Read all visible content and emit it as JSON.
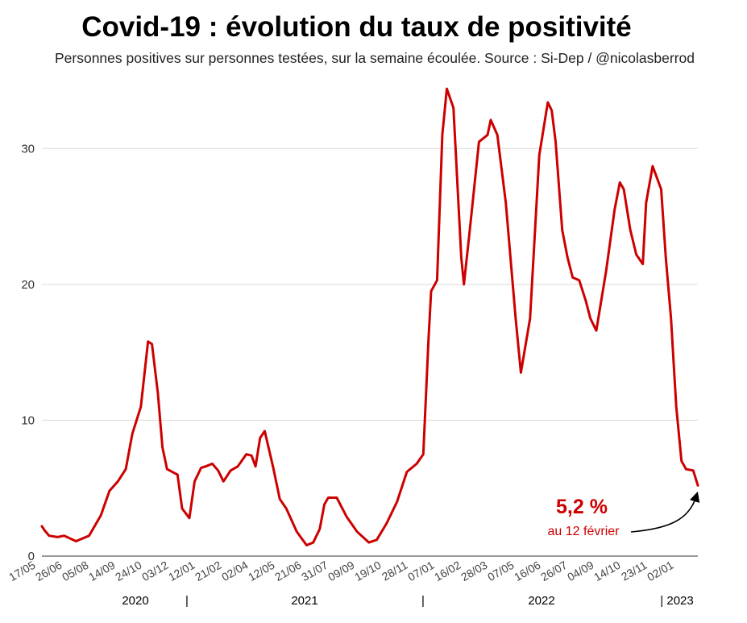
{
  "title": "Covid-19 : évolution du taux de positivité",
  "subtitle": "Personnes positives sur personnes testées, sur la semaine écoulée. Source : Si-Dep / @nicolasberrod",
  "chart_data": {
    "type": "line",
    "ylim": [
      0,
      35
    ],
    "yticks": [
      0,
      10,
      20,
      30
    ],
    "grid": true,
    "line_color": "#cc0000",
    "x_tick_labels": [
      "17/05",
      "26/06",
      "05/08",
      "14/09",
      "24/10",
      "03/12",
      "12/01",
      "21/02",
      "02/04",
      "12/05",
      "21/06",
      "31/07",
      "09/09",
      "19/10",
      "28/11",
      "07/01",
      "16/02",
      "28/03",
      "07/05",
      "16/06",
      "26/07",
      "04/09",
      "14/10",
      "23/11",
      "02/01"
    ],
    "year_labels": [
      "2020",
      "|",
      "2021",
      "|",
      "2022",
      "| 2023"
    ],
    "x_start": "2020-05-17",
    "x_end": "2023-02-12",
    "series": [
      {
        "x": [
          "2020-05-17",
          "2020-05-21",
          "2020-05-28",
          "2020-06-10",
          "2020-06-20",
          "2020-07-08",
          "2020-07-28",
          "2020-08-15",
          "2020-08-28",
          "2020-09-10",
          "2020-09-22",
          "2020-10-02",
          "2020-10-15",
          "2020-10-26",
          "2020-11-01",
          "2020-11-10",
          "2020-11-17",
          "2020-11-24",
          "2020-12-10",
          "2020-12-17",
          "2020-12-28",
          "2021-01-05",
          "2021-01-15",
          "2021-01-22",
          "2021-02-01",
          "2021-02-10",
          "2021-02-18",
          "2021-03-01",
          "2021-03-12",
          "2021-03-25",
          "2021-04-02",
          "2021-04-08",
          "2021-04-15",
          "2021-04-22",
          "2021-05-05",
          "2021-05-15",
          "2021-05-25",
          "2021-06-10",
          "2021-06-25",
          "2021-07-05",
          "2021-07-15",
          "2021-07-22",
          "2021-07-28",
          "2021-08-10",
          "2021-08-25",
          "2021-09-10",
          "2021-09-28",
          "2021-10-10",
          "2021-10-25",
          "2021-11-10",
          "2021-11-25",
          "2021-12-10",
          "2021-12-20",
          "2021-12-28",
          "2022-01-01",
          "2022-01-10",
          "2022-01-18",
          "2022-01-25",
          "2022-02-04",
          "2022-02-16",
          "2022-02-20",
          "2022-03-01",
          "2022-03-15",
          "2022-03-28",
          "2022-04-02",
          "2022-04-12",
          "2022-04-25",
          "2022-05-10",
          "2022-05-18",
          "2022-06-01",
          "2022-06-15",
          "2022-06-28",
          "2022-07-04",
          "2022-07-10",
          "2022-07-20",
          "2022-07-28",
          "2022-08-05",
          "2022-08-15",
          "2022-08-25",
          "2022-09-01",
          "2022-09-10",
          "2022-09-25",
          "2022-10-08",
          "2022-10-16",
          "2022-10-22",
          "2022-11-01",
          "2022-11-10",
          "2022-11-20",
          "2022-11-25",
          "2022-12-05",
          "2022-12-18",
          "2022-12-25",
          "2023-01-02",
          "2023-01-10",
          "2023-01-18",
          "2023-01-25",
          "2023-02-05",
          "2023-02-12"
        ],
        "y": [
          2.2,
          1.9,
          1.5,
          1.4,
          1.5,
          1.1,
          1.5,
          3.0,
          4.8,
          5.5,
          6.4,
          9.0,
          11.0,
          15.8,
          15.6,
          12.0,
          8.0,
          6.4,
          6.0,
          3.5,
          2.8,
          5.5,
          6.5,
          6.6,
          6.8,
          6.3,
          5.5,
          6.3,
          6.6,
          7.5,
          7.4,
          6.6,
          8.7,
          9.2,
          6.5,
          4.2,
          3.5,
          1.8,
          0.8,
          1.0,
          2.0,
          3.8,
          4.3,
          4.3,
          2.9,
          1.8,
          1.0,
          1.2,
          2.4,
          4.0,
          6.2,
          6.8,
          7.5,
          16.0,
          19.5,
          20.3,
          31.0,
          34.4,
          33.0,
          22.0,
          20.0,
          24.0,
          30.5,
          31.0,
          32.1,
          31.0,
          26.0,
          17.5,
          13.5,
          17.5,
          29.5,
          33.4,
          32.8,
          30.5,
          24.0,
          22.0,
          20.5,
          20.3,
          18.8,
          17.5,
          16.6,
          21.0,
          25.5,
          27.5,
          27.0,
          24.0,
          22.2,
          21.5,
          26.0,
          28.7,
          27.0,
          22.0,
          17.5,
          11.0,
          7.0,
          6.4,
          6.3,
          5.2
        ]
      }
    ],
    "annotation": {
      "value": "5,2 %",
      "text": "au 12 février"
    }
  }
}
